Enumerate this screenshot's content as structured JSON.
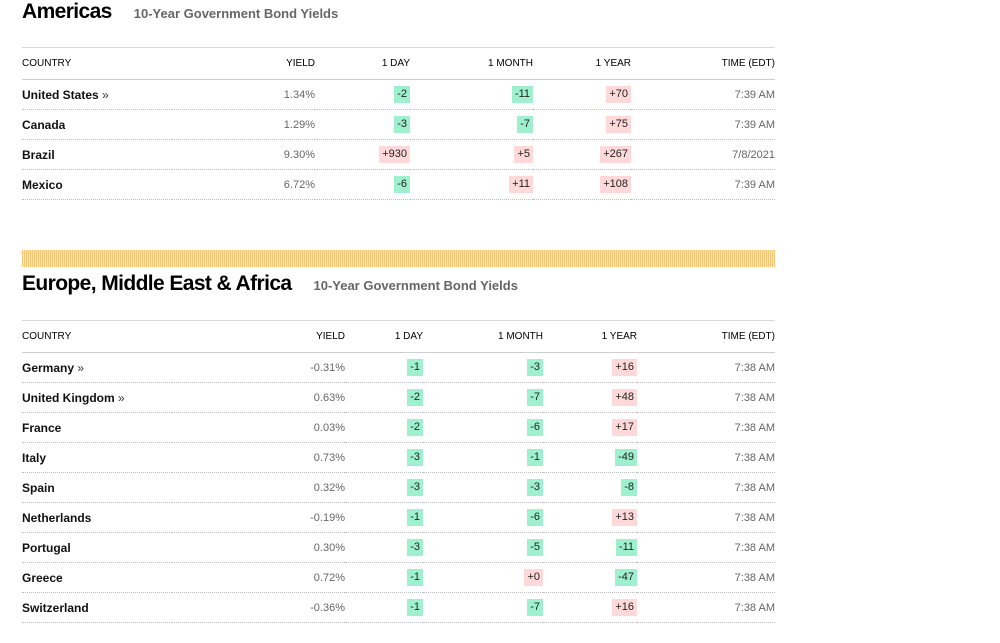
{
  "americas": {
    "title": "Americas",
    "subtitle": "10-Year Government Bond Yields",
    "headers": {
      "country": "COUNTRY",
      "yield": "YIELD",
      "day": "1 DAY",
      "month": "1 MONTH",
      "year": "1 YEAR",
      "time": "TIME (EDT)"
    },
    "rows": [
      {
        "country": "United States",
        "arrow": "»",
        "yield": "1.34%",
        "day": "-2",
        "month": "-11",
        "year": "+70",
        "time": "7:39 AM"
      },
      {
        "country": "Canada",
        "arrow": "",
        "yield": "1.29%",
        "day": "-3",
        "month": "-7",
        "year": "+75",
        "time": "7:39 AM"
      },
      {
        "country": "Brazil",
        "arrow": "",
        "yield": "9.30%",
        "day": "+930",
        "month": "+5",
        "year": "+267",
        "time": "7/8/2021"
      },
      {
        "country": "Mexico",
        "arrow": "",
        "yield": "6.72%",
        "day": "-6",
        "month": "+11",
        "year": "+108",
        "time": "7:39 AM"
      }
    ]
  },
  "emea": {
    "title": "Europe, Middle East & Africa",
    "subtitle": "10-Year Government Bond Yields",
    "headers": {
      "country": "COUNTRY",
      "yield": "YIELD",
      "day": "1 DAY",
      "month": "1 MONTH",
      "year": "1 YEAR",
      "time": "TIME (EDT)"
    },
    "rows": [
      {
        "country": "Germany",
        "arrow": "»",
        "yield": "-0.31%",
        "day": "-1",
        "month": "-3",
        "year": "+16",
        "time": "7:38 AM"
      },
      {
        "country": "United Kingdom",
        "arrow": "»",
        "yield": "0.63%",
        "day": "-2",
        "month": "-7",
        "year": "+48",
        "time": "7:38 AM"
      },
      {
        "country": "France",
        "arrow": "",
        "yield": "0.03%",
        "day": "-2",
        "month": "-6",
        "year": "+17",
        "time": "7:38 AM"
      },
      {
        "country": "Italy",
        "arrow": "",
        "yield": "0.73%",
        "day": "-3",
        "month": "-1",
        "year": "-49",
        "time": "7:38 AM"
      },
      {
        "country": "Spain",
        "arrow": "",
        "yield": "0.32%",
        "day": "-3",
        "month": "-3",
        "year": "-8",
        "time": "7:38 AM"
      },
      {
        "country": "Netherlands",
        "arrow": "",
        "yield": "-0.19%",
        "day": "-1",
        "month": "-6",
        "year": "+13",
        "time": "7:38 AM"
      },
      {
        "country": "Portugal",
        "arrow": "",
        "yield": "0.30%",
        "day": "-3",
        "month": "-5",
        "year": "-11",
        "time": "7:38 AM"
      },
      {
        "country": "Greece",
        "arrow": "",
        "yield": "0.72%",
        "day": "-1",
        "month": "+0",
        "year": "-47",
        "time": "7:38 AM"
      },
      {
        "country": "Switzerland",
        "arrow": "",
        "yield": "-0.36%",
        "day": "-1",
        "month": "-7",
        "year": "+16",
        "time": "7:38 AM"
      }
    ]
  },
  "colors": {
    "negative": "#9ff0cf",
    "positive": "#ffd9d9",
    "divider": "#f5c97a"
  }
}
